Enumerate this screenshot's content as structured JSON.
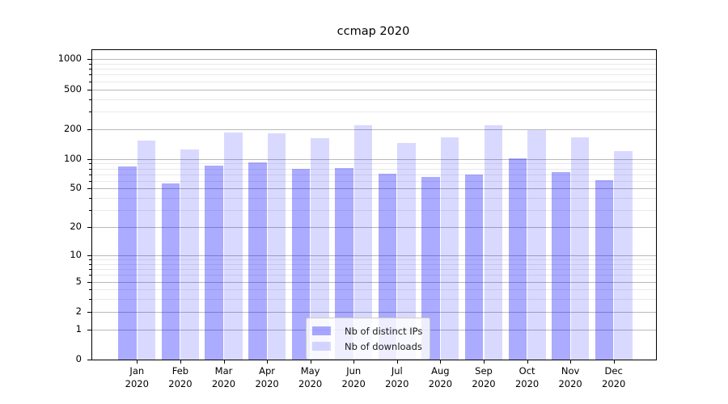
{
  "chart_data": {
    "type": "bar",
    "title": "ccmap 2020",
    "categories": [
      "Jan",
      "Feb",
      "Mar",
      "Apr",
      "May",
      "Jun",
      "Jul",
      "Aug",
      "Sep",
      "Oct",
      "Nov",
      "Dec"
    ],
    "category_year": "2020",
    "series": [
      {
        "name": "Nb of distinct IPs",
        "color": "rgba(0,0,255,0.33)",
        "values": [
          84,
          57,
          86,
          93,
          80,
          81,
          71,
          66,
          69,
          101,
          74,
          61
        ]
      },
      {
        "name": "Nb of downloads",
        "color": "rgba(0,0,255,0.15)",
        "values": [
          152,
          125,
          183,
          182,
          161,
          218,
          144,
          164,
          218,
          197,
          166,
          120
        ]
      }
    ],
    "yscale": "symlog",
    "ylim": [
      0,
      1233
    ],
    "y_ticks": [
      0,
      1,
      2,
      5,
      10,
      20,
      50,
      100,
      200,
      500,
      1000
    ],
    "y_minor_ticks": [
      3,
      4,
      6,
      7,
      8,
      9,
      30,
      40,
      60,
      70,
      80,
      90,
      300,
      400,
      600,
      700,
      800,
      900
    ],
    "grid": true,
    "legend_position": "lower center",
    "colors": {
      "grid_major": "#b9b9b9",
      "grid_minor": "#e9e9e9",
      "axis": "#000000",
      "background": "#ffffff"
    }
  }
}
